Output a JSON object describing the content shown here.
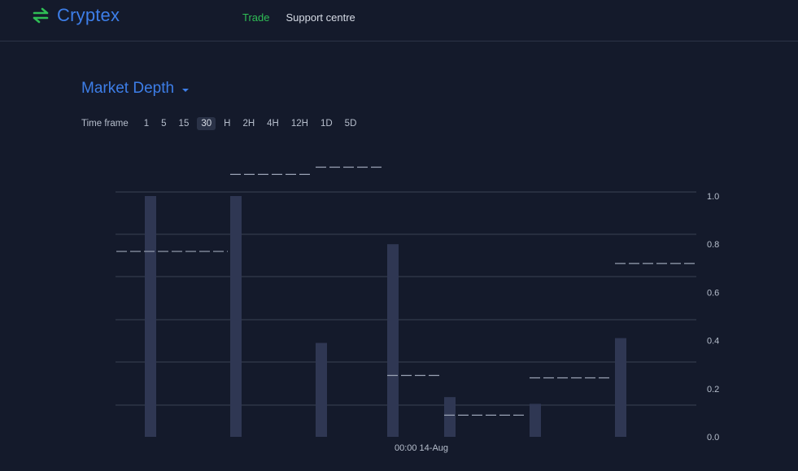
{
  "header": {
    "brand": "Cryptex",
    "nav": [
      {
        "label": "Trade",
        "active": true
      },
      {
        "label": "Support centre",
        "active": false
      }
    ]
  },
  "panel": {
    "title": "Market Depth",
    "timeframe_label": "Time frame",
    "timeframes": [
      "1",
      "5",
      "15",
      "30",
      "H",
      "2H",
      "4H",
      "12H",
      "1D",
      "5D"
    ],
    "selected_timeframe": "30"
  },
  "colors": {
    "accent": "#3d7ee8",
    "active_nav": "#2fbd55",
    "bar": "#2f3753",
    "dash": "#9aa3b5",
    "grid": "#3a4153"
  },
  "chart_data": {
    "type": "bar",
    "x_tick_labels": [
      "00:00 14-Aug"
    ],
    "y_ticks": [
      0.0,
      0.2,
      0.4,
      0.6,
      0.8,
      1.0
    ],
    "y_tick_labels": [
      "0.0",
      "0.2",
      "0.4",
      "0.6",
      "0.8",
      "1.0"
    ],
    "ylim": [
      0,
      1.0
    ],
    "series": [
      {
        "values": [
          1.0,
          1.0,
          0.39,
          0.8,
          0.165,
          0.137,
          0.41
        ]
      },
      {
        "type": "step-dashed",
        "values": [
          0.77,
          1.09,
          1.12,
          0.255,
          0.09,
          0.245,
          0.72
        ]
      }
    ]
  }
}
